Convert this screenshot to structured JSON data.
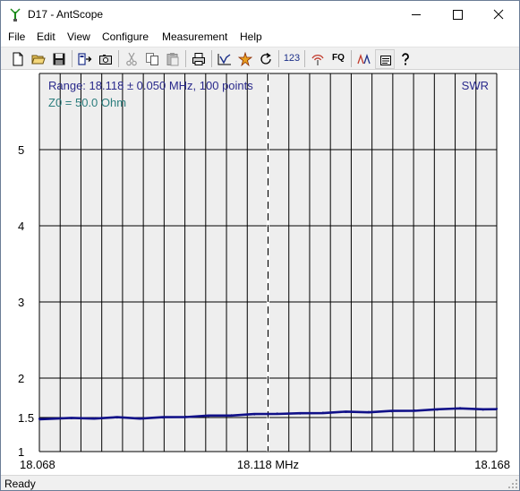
{
  "window": {
    "title": "D17 - AntScope",
    "controls": {
      "minimize": "–",
      "maximize": "☐",
      "close": "✕"
    }
  },
  "menu": [
    "File",
    "Edit",
    "View",
    "Configure",
    "Measurement",
    "Help"
  ],
  "toolbar": {
    "buttons": [
      {
        "icon": "new-file-icon"
      },
      {
        "icon": "open-folder-icon"
      },
      {
        "icon": "save-icon"
      },
      {
        "icon": "export-icon"
      },
      {
        "icon": "camera-icon"
      },
      {
        "icon": "cut-icon"
      },
      {
        "icon": "copy-icon"
      },
      {
        "icon": "paste-icon"
      },
      {
        "icon": "print-icon"
      },
      {
        "icon": "chart-icon"
      },
      {
        "icon": "measure-icon"
      },
      {
        "icon": "refresh-icon"
      },
      {
        "icon": "numbers-icon",
        "label": "123"
      },
      {
        "icon": "antenna-icon"
      },
      {
        "icon": "frequency-icon",
        "label": "FQ"
      },
      {
        "icon": "markers-icon"
      },
      {
        "icon": "list-icon",
        "pressed": true
      },
      {
        "icon": "help-icon"
      }
    ]
  },
  "plot": {
    "range_label": "Range: 18.118 ± 0.050 MHz, 100 points",
    "z0_label": "Z0 = 50.0 Ohm",
    "mode_label": "SWR",
    "colors": {
      "trace": "#101088",
      "label": "#2a2a8c",
      "z0": "#2b7d7d",
      "grid": "#000000",
      "background": "#eeeeee"
    }
  },
  "chart_data": {
    "type": "line",
    "title": "SWR",
    "xlabel": "",
    "ylabel": "",
    "x_ticks": [
      "18.068",
      "18.118 MHz",
      "18.168"
    ],
    "y_ticks": [
      "1",
      "1.5",
      "2",
      "3",
      "4",
      "5"
    ],
    "xlim": [
      18.068,
      18.168
    ],
    "ylim": [
      1,
      6
    ],
    "y_scale": "swr",
    "grid": true,
    "marker_x": 18.118,
    "series": [
      {
        "x": [
          18.068,
          18.075,
          18.08,
          18.085,
          18.09,
          18.095,
          18.1,
          18.105,
          18.11,
          18.115,
          18.12,
          18.125,
          18.13,
          18.135,
          18.14,
          18.145,
          18.15,
          18.155,
          18.16,
          18.165,
          18.168
        ],
        "values": [
          1.48,
          1.49,
          1.49,
          1.5,
          1.49,
          1.5,
          1.51,
          1.52,
          1.53,
          1.54,
          1.55,
          1.55,
          1.56,
          1.57,
          1.57,
          1.58,
          1.59,
          1.6,
          1.62,
          1.6,
          1.61
        ]
      }
    ]
  },
  "status": "Ready"
}
